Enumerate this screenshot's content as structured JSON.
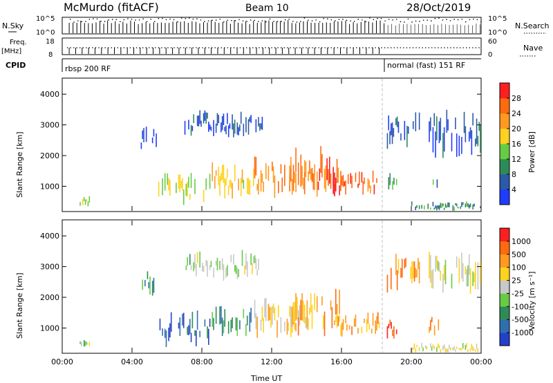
{
  "header": {
    "station": "McMurdo (fitACF)",
    "beam": "Beam 10",
    "date": "28/Oct/2019"
  },
  "status_panel": {
    "nsky_label": "N.Sky",
    "nsky_ticks": [
      "10^5",
      "10^0"
    ],
    "nsearch_label": "N.Search",
    "nsearch_ticks": [
      "10^5",
      "10^0"
    ],
    "freq_label": "Freq.",
    "freq_unit": "[MHz]",
    "freq_ticks": [
      "18",
      "8"
    ],
    "nave_label": "Nave",
    "nave_ticks": [
      "60",
      "0"
    ],
    "cpid_label": "CPID",
    "cpid_segments": [
      {
        "label": "rbsp 200 RF",
        "start_hour": 0.0
      },
      {
        "label": "normal (fast) 151 RF",
        "start_hour": 18.5
      }
    ]
  },
  "chart_data": [
    {
      "type": "heatmap",
      "name": "power-panel",
      "xlabel": "Time UT",
      "ylabel": "Slant Range [km]",
      "x_ticks": [
        "00:00",
        "04:00",
        "08:00",
        "12:00",
        "16:00",
        "20:00",
        "00:00"
      ],
      "xlim_hours": [
        0,
        24
      ],
      "y_ticks": [
        "1000",
        "2000",
        "3000",
        "4000"
      ],
      "ylim_km": [
        200,
        4500
      ],
      "mode_change_hour": 18.5,
      "colorbar": {
        "label": "Power [dB]",
        "ticks": [
          "4",
          "8",
          "12",
          "16",
          "20",
          "24",
          "28"
        ],
        "colors": [
          "#1f3cff",
          "#2b5aa8",
          "#2e8b57",
          "#66cc44",
          "#ffd21f",
          "#ff9a1f",
          "#ff6a10",
          "#ff1f1f"
        ]
      },
      "clusters": [
        {
          "t0": 1.0,
          "t1": 1.6,
          "r0": 350,
          "r1": 700,
          "level": 0.45
        },
        {
          "t0": 4.5,
          "t1": 5.5,
          "r0": 2000,
          "r1": 3000,
          "level": 0.1
        },
        {
          "t0": 5.5,
          "t1": 8.5,
          "r0": 400,
          "r1": 1500,
          "level": 0.5
        },
        {
          "t0": 7.0,
          "t1": 11.5,
          "r0": 2600,
          "r1": 3500,
          "level": 0.15
        },
        {
          "t0": 8.5,
          "t1": 11.0,
          "r0": 600,
          "r1": 1700,
          "level": 0.55
        },
        {
          "t0": 11.0,
          "t1": 14.5,
          "r0": 700,
          "r1": 2000,
          "level": 0.75
        },
        {
          "t0": 13.0,
          "t1": 16.0,
          "r0": 700,
          "r1": 2200,
          "level": 0.8
        },
        {
          "t0": 15.5,
          "t1": 18.2,
          "r0": 700,
          "r1": 1500,
          "level": 0.85
        },
        {
          "t0": 18.6,
          "t1": 19.2,
          "r0": 700,
          "r1": 1400,
          "level": 0.35
        },
        {
          "t0": 18.6,
          "t1": 20.5,
          "r0": 2200,
          "r1": 3400,
          "level": 0.15
        },
        {
          "t0": 21.0,
          "t1": 21.6,
          "r0": 800,
          "r1": 1400,
          "level": 0.3
        },
        {
          "t0": 21.0,
          "t1": 24.0,
          "r0": 2000,
          "r1": 3500,
          "level": 0.15
        },
        {
          "t0": 20.0,
          "t1": 24.0,
          "r0": 200,
          "r1": 500,
          "level": 0.3
        }
      ]
    },
    {
      "type": "heatmap",
      "name": "velocity-panel",
      "xlabel": "Time UT",
      "ylabel": "Slant Range [km]",
      "x_ticks": [
        "00:00",
        "04:00",
        "08:00",
        "12:00",
        "16:00",
        "20:00",
        "00:00"
      ],
      "xlim_hours": [
        0,
        24
      ],
      "y_ticks": [
        "1000",
        "2000",
        "3000",
        "4000"
      ],
      "ylim_km": [
        200,
        4500
      ],
      "mode_change_hour": 18.5,
      "colorbar": {
        "label": "Velocity [m s⁻¹]",
        "ticks": [
          "1000",
          "500",
          "100",
          "25",
          "-25",
          "-100",
          "-500",
          "-1000"
        ],
        "colors": [
          "#2540c8",
          "#2f6fb0",
          "#2e8b57",
          "#66cc44",
          "#c8c8c8",
          "#ffd21f",
          "#ff9a1f",
          "#ff6a10",
          "#ff1f1f"
        ]
      },
      "clusters": [
        {
          "t0": 1.0,
          "t1": 1.6,
          "r0": 350,
          "r1": 700,
          "level": 0.45
        },
        {
          "t0": 4.5,
          "t1": 5.5,
          "r0": 2000,
          "r1": 3000,
          "level": 0.3
        },
        {
          "t0": 5.5,
          "t1": 8.5,
          "r0": 400,
          "r1": 1500,
          "level": 0.12
        },
        {
          "t0": 7.0,
          "t1": 11.5,
          "r0": 2600,
          "r1": 3500,
          "level": 0.45
        },
        {
          "t0": 8.5,
          "t1": 11.0,
          "r0": 600,
          "r1": 1700,
          "level": 0.3
        },
        {
          "t0": 11.0,
          "t1": 14.5,
          "r0": 700,
          "r1": 2000,
          "level": 0.62
        },
        {
          "t0": 13.0,
          "t1": 16.0,
          "r0": 700,
          "r1": 2200,
          "level": 0.68
        },
        {
          "t0": 15.5,
          "t1": 18.2,
          "r0": 700,
          "r1": 1500,
          "level": 0.7
        },
        {
          "t0": 18.6,
          "t1": 19.2,
          "r0": 700,
          "r1": 1400,
          "level": 0.9
        },
        {
          "t0": 18.6,
          "t1": 20.5,
          "r0": 2200,
          "r1": 3400,
          "level": 0.75
        },
        {
          "t0": 21.0,
          "t1": 21.6,
          "r0": 800,
          "r1": 1400,
          "level": 0.75
        },
        {
          "t0": 21.0,
          "t1": 24.0,
          "r0": 2000,
          "r1": 3500,
          "level": 0.5
        },
        {
          "t0": 20.0,
          "t1": 24.0,
          "r0": 200,
          "r1": 500,
          "level": 0.55
        }
      ]
    }
  ]
}
